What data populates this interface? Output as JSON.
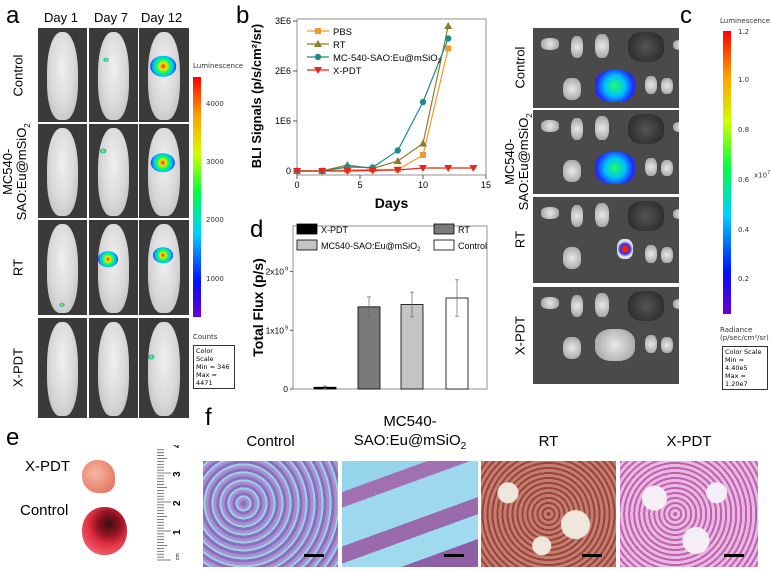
{
  "panels": {
    "a": {
      "letter": "a",
      "columns": [
        "Day 1",
        "Day 7",
        "Day 12"
      ],
      "rows": [
        "Control",
        "MC540-SAO:Eu@mSiO2",
        "RT",
        "X-PDT"
      ],
      "row_sub": {
        "line1": "MC540-",
        "line2": "SAO:Eu@mSiO",
        "sub": "2"
      },
      "colorbar": {
        "title": "Luminescence",
        "ticks": [
          "4000",
          "3000",
          "2000",
          "1000"
        ],
        "unit": "Counts",
        "box": [
          "Color Scale",
          "Min = 346",
          "Max = 4471"
        ]
      }
    },
    "c": {
      "letter": "c",
      "rows": [
        "Control",
        "MC540-SAO:Eu@mSiO2",
        "RT",
        "X-PDT"
      ],
      "row_sub": {
        "line1": "MC540-",
        "line2": "SAO:Eu@mSiO",
        "sub": "2"
      },
      "colorbar": {
        "title": "Luminescence",
        "ticks": [
          "1.2",
          "1.0",
          "0.8",
          "0.6",
          "0.4",
          "0.2"
        ],
        "multiplier": "x10",
        "multiplier_exp": "7",
        "unit_line1": "Radiance",
        "unit_line2": "(p/sec/cm²/sr)",
        "box": [
          "Color Scale",
          "Min = 4.40e5",
          "Max = 1.20e7"
        ]
      }
    },
    "e": {
      "letter": "e",
      "labels": [
        "X-PDT",
        "Control"
      ],
      "ruler_ticks": [
        "1",
        "2",
        "3",
        "4"
      ],
      "ruler_unit": "cm"
    },
    "f": {
      "letter": "f",
      "titles": [
        "Control",
        "MC540-",
        "SAO:Eu@mSiO",
        "RT",
        "X-PDT"
      ],
      "title_sub": "2"
    }
  },
  "chart_data": [
    {
      "panel": "b",
      "type": "line",
      "xlabel": "Days",
      "ylabel": "BLI Signals (p/s/cm²/sr)",
      "xlim": [
        0,
        15
      ],
      "ylim": [
        0,
        3000000
      ],
      "xticks": [
        "0",
        "5",
        "10",
        "15"
      ],
      "yticks": [
        "0",
        "1E6",
        "2E6",
        "3E6"
      ],
      "legend": "top-left",
      "series": [
        {
          "name": "PBS",
          "color": "#f39a2e",
          "marker": "square",
          "x": [
            0,
            2,
            4,
            6,
            8,
            10,
            12
          ],
          "y": [
            0,
            0,
            20000,
            30000,
            30000,
            320000,
            2450000
          ]
        },
        {
          "name": "RT",
          "color": "#8b7d2a",
          "marker": "triangle-up",
          "x": [
            0,
            2,
            4,
            6,
            8,
            10,
            12
          ],
          "y": [
            0,
            0,
            120000,
            50000,
            200000,
            550000,
            2900000
          ]
        },
        {
          "name": "MC-540-SAO:Eu@mSiO2",
          "label_main": "MC-540-SAO:Eu@mSiO",
          "label_sub": "2",
          "color": "#1e8c8c",
          "marker": "circle",
          "x": [
            0,
            2,
            4,
            6,
            8,
            10,
            12
          ],
          "y": [
            0,
            0,
            80000,
            70000,
            410000,
            1380000,
            2650000
          ]
        },
        {
          "name": "X-PDT",
          "color": "#e8261e",
          "marker": "triangle-down",
          "x": [
            0,
            2,
            4,
            6,
            8,
            10,
            12,
            14
          ],
          "y": [
            0,
            0,
            0,
            10000,
            20000,
            60000,
            60000,
            60000
          ]
        }
      ]
    },
    {
      "panel": "d",
      "type": "bar",
      "ylabel": "Total Flux (p/s)",
      "ylim": [
        0,
        2500000000
      ],
      "yticks": [
        {
          "base": "0",
          "exp": ""
        },
        {
          "base": "1x10",
          "exp": "9"
        },
        {
          "base": "2x10",
          "exp": "9"
        }
      ],
      "legend": "top",
      "categories": [
        "X-PDT",
        "RT",
        "MC540-SAO:Eu@mSiO2",
        "Control"
      ],
      "legend_labels": [
        {
          "main": "X-PDT",
          "sub": ""
        },
        {
          "main": "RT",
          "sub": ""
        },
        {
          "main": "MC540-SAO:Eu@mSiO",
          "sub": "2"
        },
        {
          "main": "Control",
          "sub": ""
        }
      ],
      "colors": [
        "#000000",
        "#7a7a7a",
        "#c4c4c4",
        "#ffffff"
      ],
      "values": [
        30000000,
        1400000000,
        1440000000,
        1550000000
      ],
      "errors": [
        20000000,
        170000000,
        210000000,
        310000000
      ]
    }
  ]
}
